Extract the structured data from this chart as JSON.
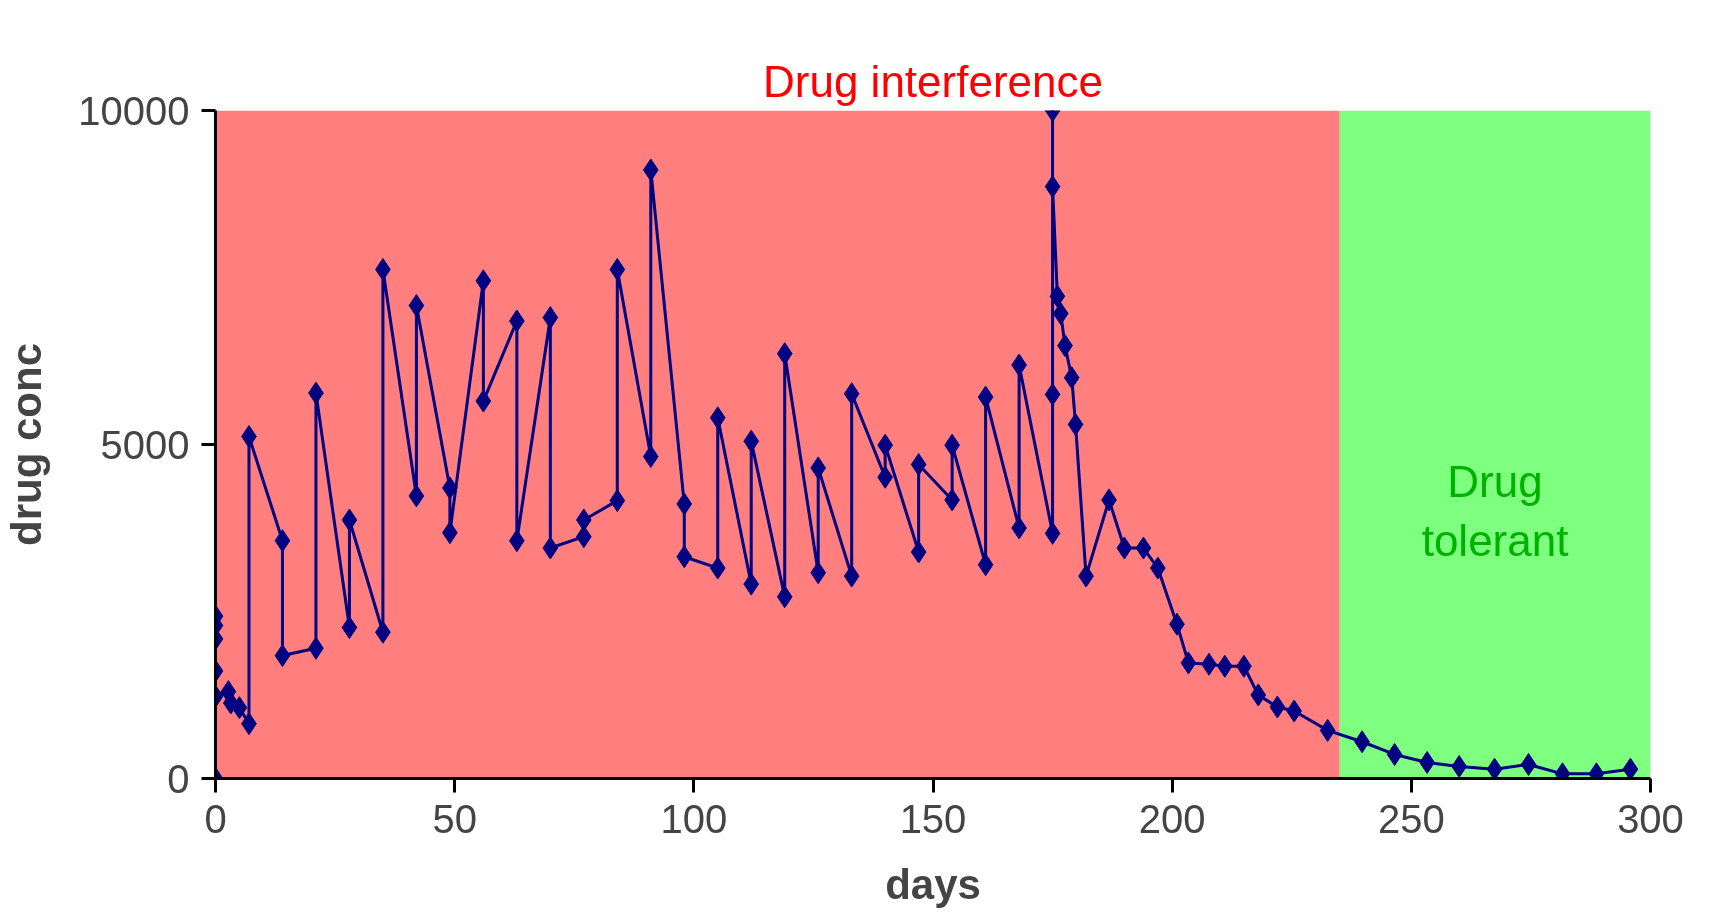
{
  "chart_data": {
    "type": "line",
    "xlabel": "days",
    "ylabel": "drug conc",
    "x": [
      0,
      0,
      0,
      0,
      0,
      0,
      2.7,
      3.2,
      5,
      7,
      7,
      14,
      14,
      21,
      21,
      28,
      28,
      35,
      35,
      42,
      42,
      49,
      49,
      56,
      56,
      63,
      63,
      70,
      70,
      77,
      77,
      84,
      84,
      91,
      91,
      98,
      98,
      105,
      105,
      112,
      112,
      119,
      119,
      126,
      126,
      133,
      133,
      140,
      140,
      147,
      147,
      154,
      154,
      161,
      161,
      168,
      168,
      175,
      175,
      175,
      175,
      176,
      176.7,
      177.6,
      179,
      179.8,
      182,
      186.8,
      190,
      194,
      197,
      201,
      203.4,
      207.7,
      211,
      215,
      218,
      222,
      225.5,
      232.5,
      239.7,
      246.5,
      253.3,
      260,
      267.4,
      274.5,
      281.6,
      288.7,
      295.8
    ],
    "series": [
      {
        "color": "#000080",
        "values": [
          0,
          2430,
          2290,
          2090,
          1610,
          1230,
          1300,
          1130,
          1060,
          820,
          5120,
          3560,
          1840,
          1950,
          5770,
          2260,
          3870,
          2190,
          7620,
          4230,
          7080,
          4350,
          3680,
          7450,
          5650,
          6850,
          3560,
          6900,
          3450,
          3620,
          3870,
          4160,
          7620,
          4820,
          9110,
          4110,
          3320,
          3150,
          5400,
          2910,
          5050,
          2720,
          6360,
          3080,
          4650,
          3030,
          5760,
          4510,
          4990,
          3390,
          4700,
          4170,
          4990,
          3200,
          5710,
          3750,
          6190,
          3670,
          5750,
          10000,
          8860,
          7220,
          6960,
          6480,
          6000,
          5300,
          3030,
          4170,
          3450,
          3450,
          3150,
          2310,
          1730,
          1710,
          1680,
          1680,
          1250,
          1070,
          1010,
          720,
          550,
          360,
          240,
          180,
          140,
          210,
          70,
          70,
          140
        ]
      }
    ],
    "xlim": [
      0,
      300
    ],
    "xticks": [
      0,
      50,
      100,
      150,
      200,
      250,
      300
    ],
    "ylim": [
      0,
      10000
    ],
    "yticks": [
      0,
      5000,
      10000
    ],
    "bands": [
      {
        "axis": "x",
        "from": 0,
        "to": 235,
        "label": "Drug interference",
        "color": "#ff0000"
      },
      {
        "axis": "x",
        "from": 235,
        "to": 300,
        "label": "Drug tolerant",
        "color": "#00ff00"
      }
    ],
    "grid": false,
    "marker": "diamond",
    "line_style": "solid"
  }
}
